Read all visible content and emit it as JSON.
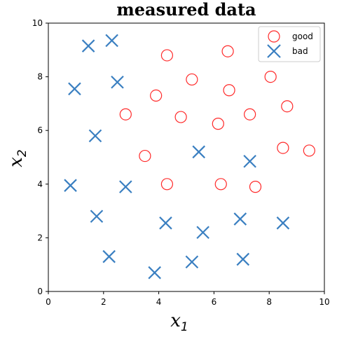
{
  "chart_data": {
    "type": "scatter",
    "title": "measured data",
    "xlabel": {
      "base": "x",
      "sub": "1"
    },
    "ylabel": {
      "base": "x",
      "sub": "2"
    },
    "xlim": [
      0,
      10
    ],
    "ylim": [
      0,
      10
    ],
    "xticks": [
      "0",
      "2",
      "4",
      "6",
      "8",
      "10"
    ],
    "yticks": [
      "0",
      "2",
      "4",
      "6",
      "8",
      "10"
    ],
    "grid": false,
    "legend_position": "top-right",
    "series": [
      {
        "name": "good",
        "marker": "circle-open",
        "color": "#ff2a2a",
        "points": [
          [
            4.3,
            8.8
          ],
          [
            6.5,
            8.95
          ],
          [
            5.2,
            7.9
          ],
          [
            8.05,
            8.0
          ],
          [
            3.9,
            7.3
          ],
          [
            6.55,
            7.5
          ],
          [
            2.8,
            6.6
          ],
          [
            4.8,
            6.5
          ],
          [
            7.3,
            6.6
          ],
          [
            8.65,
            6.9
          ],
          [
            6.15,
            6.25
          ],
          [
            3.5,
            5.05
          ],
          [
            8.5,
            5.35
          ],
          [
            9.45,
            5.25
          ],
          [
            4.3,
            4.0
          ],
          [
            6.25,
            4.0
          ],
          [
            7.5,
            3.9
          ]
        ]
      },
      {
        "name": "bad",
        "marker": "x",
        "color": "#3a7fc1",
        "points": [
          [
            1.45,
            9.15
          ],
          [
            2.3,
            9.35
          ],
          [
            0.95,
            7.55
          ],
          [
            2.5,
            7.8
          ],
          [
            1.7,
            5.8
          ],
          [
            5.45,
            5.2
          ],
          [
            7.3,
            4.85
          ],
          [
            0.8,
            3.95
          ],
          [
            2.8,
            3.9
          ],
          [
            1.75,
            2.8
          ],
          [
            4.25,
            2.55
          ],
          [
            5.6,
            2.2
          ],
          [
            6.95,
            2.7
          ],
          [
            8.5,
            2.55
          ],
          [
            2.2,
            1.3
          ],
          [
            3.85,
            0.7
          ],
          [
            5.2,
            1.1
          ],
          [
            7.05,
            1.2
          ]
        ]
      }
    ]
  }
}
